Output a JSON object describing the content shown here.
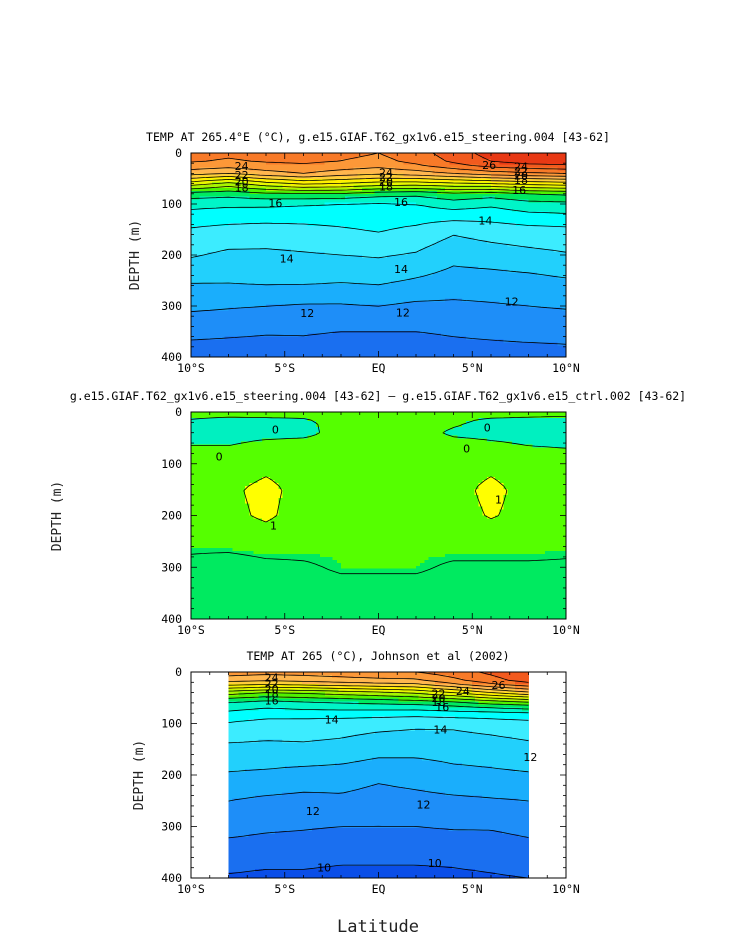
{
  "page": {
    "xlabel": "Latitude"
  },
  "colors": {
    "temperature_bands": [
      {
        "min": 0,
        "max": 10,
        "color": "#0a4ee8"
      },
      {
        "min": 10,
        "max": 11,
        "color": "#1a6ff0"
      },
      {
        "min": 11,
        "max": 12,
        "color": "#1e8ef8"
      },
      {
        "min": 12,
        "max": 13,
        "color": "#1aaefc"
      },
      {
        "min": 13,
        "max": 14,
        "color": "#22d0fc"
      },
      {
        "min": 14,
        "max": 15,
        "color": "#3cecff"
      },
      {
        "min": 15,
        "max": 16,
        "color": "#00ffff"
      },
      {
        "min": 16,
        "max": 17,
        "color": "#00f5c8"
      },
      {
        "min": 17,
        "max": 18,
        "color": "#00ea60"
      },
      {
        "min": 18,
        "max": 19,
        "color": "#50f200"
      },
      {
        "min": 19,
        "max": 20,
        "color": "#a8f500"
      },
      {
        "min": 20,
        "max": 21,
        "color": "#e8f800"
      },
      {
        "min": 21,
        "max": 22,
        "color": "#fff000"
      },
      {
        "min": 22,
        "max": 23,
        "color": "#ffcf3a"
      },
      {
        "min": 23,
        "max": 24,
        "color": "#ffb64e"
      },
      {
        "min": 24,
        "max": 25,
        "color": "#fc9838"
      },
      {
        "min": 25,
        "max": 26,
        "color": "#f87a28"
      },
      {
        "min": 26,
        "max": 27,
        "color": "#f25a1e"
      },
      {
        "min": 27,
        "max": 40,
        "color": "#e83814"
      }
    ],
    "difference_bands": [
      {
        "min": -9,
        "max": 0,
        "color": "#00f0c0"
      },
      {
        "min": 0,
        "max": 1,
        "color": "#55ff00"
      },
      {
        "min": 1,
        "max": 9,
        "color": "#ffff00"
      }
    ],
    "difference_lower_band": {
      "color": "#00ea60"
    }
  },
  "chart_data": [
    {
      "id": "model",
      "type": "heatmap",
      "title": "TEMP AT 265.4°E (°C), g.e15.GIAF.T62_gx1v6.e15_steering.004 [43-62]",
      "xlabel": "",
      "ylabel": "DEPTH (m)",
      "xlim": [
        -10,
        10
      ],
      "ylim": [
        400,
        0
      ],
      "x_ticks": [
        -10,
        -5,
        0,
        5,
        10
      ],
      "x_tick_labels": [
        "10°S",
        "5°S",
        "EQ",
        "5°N",
        "10°N"
      ],
      "y_ticks": [
        0,
        100,
        200,
        300,
        400
      ],
      "y_tick_labels": [
        "0",
        "100",
        "200",
        "300",
        "400"
      ],
      "data_x_range": [
        -10,
        10
      ],
      "lat": [
        -10,
        -8,
        -6,
        -4,
        -2,
        0,
        2,
        4,
        6,
        8,
        10
      ],
      "depth": [
        0,
        20,
        40,
        60,
        80,
        100,
        150,
        200,
        250,
        300,
        350,
        400
      ],
      "values": [
        [
          25.4,
          25.2,
          25.4,
          25.5,
          25.3,
          25.0,
          25.6,
          26.5,
          27.4,
          27.8,
          27.9
        ],
        [
          25.0,
          24.8,
          25.0,
          25.1,
          24.9,
          24.6,
          25.2,
          26.1,
          26.9,
          27.3,
          27.4
        ],
        [
          23.4,
          23.0,
          23.6,
          24.0,
          23.5,
          23.2,
          23.5,
          24.0,
          24.5,
          24.8,
          25.0
        ],
        [
          20.5,
          19.6,
          20.6,
          21.2,
          21.0,
          20.6,
          20.5,
          20.8,
          21.0,
          21.3,
          21.5
        ],
        [
          17.6,
          17.4,
          17.8,
          17.9,
          17.9,
          17.5,
          17.3,
          17.8,
          17.5,
          18.0,
          18.2
        ],
        [
          16.3,
          16.2,
          16.2,
          16.1,
          15.9,
          15.8,
          16.0,
          16.5,
          16.2,
          16.6,
          16.7
        ],
        [
          14.9,
          14.7,
          14.6,
          14.7,
          14.9,
          15.1,
          14.8,
          14.2,
          14.5,
          14.7,
          14.8
        ],
        [
          14.1,
          13.8,
          13.8,
          13.9,
          14.0,
          14.1,
          13.9,
          13.3,
          13.5,
          13.7,
          13.9
        ],
        [
          13.1,
          13.1,
          13.2,
          13.2,
          13.1,
          13.2,
          12.9,
          12.6,
          12.6,
          12.7,
          12.9
        ],
        [
          12.2,
          12.1,
          12.0,
          11.9,
          11.9,
          12.0,
          11.8,
          11.8,
          11.9,
          12.0,
          12.1
        ],
        [
          11.3,
          11.2,
          11.1,
          11.1,
          11.0,
          11.0,
          11.0,
          11.1,
          11.2,
          11.3,
          11.3
        ],
        [
          10.4,
          10.4,
          10.4,
          10.5,
          10.4,
          10.4,
          10.5,
          10.6,
          10.6,
          10.6,
          10.7
        ]
      ],
      "contour_levels": [
        10,
        11,
        12,
        13,
        14,
        15,
        16,
        17,
        18,
        19,
        20,
        21,
        22,
        23,
        24,
        25,
        26,
        27
      ],
      "contour_labels": [
        {
          "text": "24",
          "x": -7.3,
          "y": 25
        },
        {
          "text": "22",
          "x": -7.3,
          "y": 43
        },
        {
          "text": "20",
          "x": -7.3,
          "y": 56
        },
        {
          "text": "18",
          "x": -7.3,
          "y": 68
        },
        {
          "text": "16",
          "x": -5.5,
          "y": 98
        },
        {
          "text": "24",
          "x": 0.4,
          "y": 38
        },
        {
          "text": "22",
          "x": 0.4,
          "y": 47
        },
        {
          "text": "20",
          "x": 0.4,
          "y": 56
        },
        {
          "text": "18",
          "x": 0.4,
          "y": 66
        },
        {
          "text": "16",
          "x": 1.2,
          "y": 96
        },
        {
          "text": "26",
          "x": 5.9,
          "y": 24
        },
        {
          "text": "24",
          "x": 7.6,
          "y": 26
        },
        {
          "text": "22",
          "x": 7.6,
          "y": 35
        },
        {
          "text": "20",
          "x": 7.6,
          "y": 44
        },
        {
          "text": "18",
          "x": 7.6,
          "y": 53
        },
        {
          "text": "16",
          "x": 7.5,
          "y": 73
        },
        {
          "text": "14",
          "x": 5.7,
          "y": 132
        },
        {
          "text": "14",
          "x": -4.9,
          "y": 207
        },
        {
          "text": "14",
          "x": 1.2,
          "y": 227
        },
        {
          "text": "12",
          "x": -3.8,
          "y": 314
        },
        {
          "text": "12",
          "x": 1.3,
          "y": 313
        },
        {
          "text": "12",
          "x": 7.1,
          "y": 291
        }
      ]
    },
    {
      "id": "difference",
      "type": "heatmap",
      "title": "g.e15.GIAF.T62_gx1v6.e15_steering.004 [43-62] – g.e15.GIAF.T62_gx1v6.e15_ctrl.002 [43-62]",
      "xlabel": "",
      "ylabel": "DEPTH (m)",
      "xlim": [
        -10,
        10
      ],
      "ylim": [
        400,
        0
      ],
      "x_ticks": [
        -10,
        -5,
        0,
        5,
        10
      ],
      "x_tick_labels": [
        "10°S",
        "5°S",
        "EQ",
        "5°N",
        "10°N"
      ],
      "y_ticks": [
        0,
        100,
        200,
        300,
        400
      ],
      "y_tick_labels": [
        "0",
        "100",
        "200",
        "300",
        "400"
      ],
      "data_x_range": [
        -10,
        10
      ],
      "lat": [
        -10,
        -8,
        -6,
        -4,
        -2,
        0,
        2,
        4,
        6,
        8,
        10
      ],
      "depth": [
        0,
        20,
        40,
        60,
        80,
        100,
        150,
        200,
        250,
        300,
        350,
        400
      ],
      "values": [
        [
          0.5,
          0.6,
          0.6,
          0.5,
          0.6,
          0.7,
          0.7,
          0.5,
          0.6,
          0.5,
          0.6
        ],
        [
          -0.2,
          -0.6,
          -0.5,
          -0.3,
          0.5,
          0.6,
          0.6,
          0.2,
          -0.4,
          -0.5,
          -0.8
        ],
        [
          -0.2,
          -0.4,
          -0.4,
          -0.3,
          0.4,
          0.5,
          0.5,
          -0.2,
          -0.3,
          -0.3,
          -0.2
        ],
        [
          -0.1,
          -0.1,
          0.2,
          0.3,
          0.3,
          0.5,
          0.5,
          0.3,
          0.1,
          -0.1,
          -0.2
        ],
        [
          0.3,
          0.3,
          0.4,
          0.3,
          0.4,
          0.5,
          0.4,
          0.4,
          0.5,
          0.3,
          0.2
        ],
        [
          0.4,
          0.4,
          0.7,
          0.5,
          0.3,
          0.5,
          0.3,
          0.5,
          0.7,
          0.4,
          0.4
        ],
        [
          0.6,
          0.8,
          1.3,
          0.6,
          0.2,
          0.3,
          0.2,
          0.6,
          1.3,
          0.6,
          0.5
        ],
        [
          0.4,
          0.7,
          1.2,
          0.5,
          0.2,
          0.3,
          0.2,
          0.5,
          1.1,
          0.6,
          0.4
        ],
        [
          0.2,
          0.3,
          0.4,
          0.3,
          0.15,
          0.2,
          0.2,
          0.3,
          0.3,
          0.3,
          0.2
        ],
        [
          -0.2,
          -0.4,
          -0.2,
          -0.1,
          0.1,
          0.1,
          0.1,
          -0.1,
          -0.1,
          -0.1,
          -0.1
        ],
        [
          -0.5,
          -0.5,
          -0.4,
          -0.4,
          -0.3,
          -0.3,
          -0.3,
          -0.3,
          -0.3,
          -0.3,
          -0.3
        ],
        [
          -0.6,
          -0.6,
          -0.5,
          -0.5,
          -0.4,
          -0.4,
          -0.4,
          -0.4,
          -0.4,
          -0.4,
          -0.4
        ]
      ],
      "contour_levels": [
        0,
        1
      ],
      "contour_labels": [
        {
          "text": "0",
          "x": -5.5,
          "y": 34
        },
        {
          "text": "0",
          "x": -8.5,
          "y": 86
        },
        {
          "text": "0",
          "x": 5.8,
          "y": 30
        },
        {
          "text": "0",
          "x": 4.7,
          "y": 71
        },
        {
          "text": "1",
          "x": -5.6,
          "y": 219
        },
        {
          "text": "1",
          "x": 6.4,
          "y": 169
        }
      ]
    },
    {
      "id": "observations",
      "type": "heatmap",
      "title": "TEMP AT 265 (°C), Johnson et al (2002)",
      "xlabel": "Latitude",
      "ylabel": "DEPTH (m)",
      "xlim": [
        -10,
        10
      ],
      "ylim": [
        400,
        0
      ],
      "x_ticks": [
        -10,
        -5,
        0,
        5,
        10
      ],
      "x_tick_labels": [
        "10°S",
        "5°S",
        "EQ",
        "5°N",
        "10°N"
      ],
      "y_ticks": [
        0,
        100,
        200,
        300,
        400
      ],
      "y_tick_labels": [
        "0",
        "100",
        "200",
        "300",
        "400"
      ],
      "data_x_range": [
        -8,
        8
      ],
      "lat": [
        -8,
        -6,
        -4,
        -2,
        0,
        2,
        4,
        6,
        8
      ],
      "depth": [
        0,
        20,
        40,
        60,
        80,
        100,
        150,
        200,
        250,
        300,
        350,
        400
      ],
      "values": [
        [
          24.6,
          24.4,
          24.5,
          24.7,
          24.9,
          25.0,
          25.6,
          26.2,
          26.9
        ],
        [
          23.0,
          22.8,
          23.0,
          23.2,
          23.4,
          23.5,
          24.5,
          25.5,
          26.3
        ],
        [
          19.5,
          19.0,
          19.2,
          19.5,
          19.8,
          20.2,
          21.0,
          22.0,
          22.8
        ],
        [
          16.8,
          16.5,
          16.7,
          16.9,
          17.1,
          17.3,
          17.6,
          18.2,
          18.6
        ],
        [
          15.8,
          15.5,
          15.6,
          15.6,
          15.5,
          15.4,
          15.6,
          15.7,
          15.9
        ],
        [
          14.9,
          14.6,
          14.5,
          14.4,
          14.3,
          14.2,
          14.2,
          14.4,
          14.6
        ],
        [
          13.7,
          13.7,
          13.8,
          13.7,
          13.4,
          13.3,
          13.4,
          13.5,
          13.7
        ],
        [
          12.9,
          12.8,
          12.6,
          12.5,
          12.2,
          12.4,
          12.7,
          12.8,
          12.9
        ],
        [
          12.0,
          11.8,
          11.7,
          11.8,
          11.6,
          11.7,
          11.8,
          11.9,
          12.0
        ],
        [
          11.4,
          11.2,
          11.1,
          11.0,
          11.0,
          11.0,
          11.1,
          11.1,
          11.3
        ],
        [
          10.5,
          10.4,
          10.4,
          10.3,
          10.3,
          10.3,
          10.3,
          10.4,
          10.6
        ],
        [
          9.9,
          9.8,
          9.8,
          9.7,
          9.7,
          9.7,
          9.8,
          9.9,
          10.0
        ]
      ],
      "contour_levels": [
        10,
        11,
        12,
        13,
        14,
        15,
        16,
        17,
        18,
        19,
        20,
        21,
        22,
        23,
        24,
        25,
        26
      ],
      "contour_labels": [
        {
          "text": "24",
          "x": -5.7,
          "y": 11
        },
        {
          "text": "22",
          "x": -5.7,
          "y": 22
        },
        {
          "text": "20",
          "x": -5.7,
          "y": 33
        },
        {
          "text": "18",
          "x": -5.7,
          "y": 42
        },
        {
          "text": "16",
          "x": -5.7,
          "y": 55
        },
        {
          "text": "22",
          "x": 3.2,
          "y": 42
        },
        {
          "text": "20",
          "x": 3.2,
          "y": 50
        },
        {
          "text": "18",
          "x": 3.2,
          "y": 58
        },
        {
          "text": "16",
          "x": 3.4,
          "y": 68
        },
        {
          "text": "24",
          "x": 4.5,
          "y": 37
        },
        {
          "text": "26",
          "x": 6.4,
          "y": 25
        },
        {
          "text": "14",
          "x": -2.5,
          "y": 92
        },
        {
          "text": "14",
          "x": 3.3,
          "y": 112
        },
        {
          "text": "12",
          "x": 8.1,
          "y": 165
        },
        {
          "text": "12",
          "x": -3.5,
          "y": 270
        },
        {
          "text": "12",
          "x": 2.4,
          "y": 257
        },
        {
          "text": "10",
          "x": -2.9,
          "y": 380
        },
        {
          "text": "10",
          "x": 3.0,
          "y": 371
        }
      ]
    }
  ]
}
